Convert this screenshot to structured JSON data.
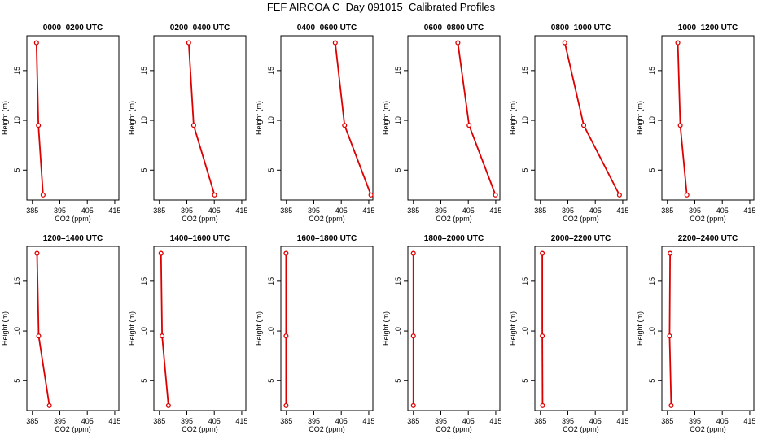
{
  "title": "FEF AIRCOA C  Day 091015  Calibrated Profiles",
  "colors": {
    "profile": "#dd0000",
    "axis": "#000000",
    "background": "#ffffff"
  },
  "chart_data": [
    {
      "type": "line",
      "title": "0000–0200 UTC",
      "xlabel": "CO2 (ppm)",
      "ylabel": "Height (m)",
      "xlim": [
        383,
        416.5
      ],
      "ylim": [
        2,
        18.5
      ],
      "xticks": [
        "385",
        "395",
        "405",
        "415"
      ],
      "yticks": [
        "5",
        "10",
        "15"
      ],
      "points": [
        {
          "x": 386.5,
          "y": 17.8
        },
        {
          "x": 387.2,
          "y": 9.5
        },
        {
          "x": 388.9,
          "y": 2.5
        }
      ]
    },
    {
      "type": "line",
      "title": "0200–0400 UTC",
      "xlabel": "CO2 (ppm)",
      "ylabel": "Height (m)",
      "xlim": [
        383,
        416.5
      ],
      "ylim": [
        2,
        18.5
      ],
      "xticks": [
        "385",
        "395",
        "405",
        "415"
      ],
      "yticks": [
        "5",
        "10",
        "15"
      ],
      "points": [
        {
          "x": 395.7,
          "y": 17.8
        },
        {
          "x": 397.5,
          "y": 9.5
        },
        {
          "x": 405.1,
          "y": 2.5
        }
      ]
    },
    {
      "type": "line",
      "title": "0400–0600 UTC",
      "xlabel": "CO2 (ppm)",
      "ylabel": "Height (m)",
      "xlim": [
        383,
        416.5
      ],
      "ylim": [
        2,
        18.5
      ],
      "xticks": [
        "385",
        "395",
        "405",
        "415"
      ],
      "yticks": [
        "5",
        "10",
        "15"
      ],
      "points": [
        {
          "x": 402.8,
          "y": 17.8
        },
        {
          "x": 406.2,
          "y": 9.5
        },
        {
          "x": 415.8,
          "y": 2.5
        }
      ]
    },
    {
      "type": "line",
      "title": "0600–0800 UTC",
      "xlabel": "CO2 (ppm)",
      "ylabel": "Height (m)",
      "xlim": [
        383,
        416.5
      ],
      "ylim": [
        2,
        18.5
      ],
      "xticks": [
        "385",
        "395",
        "405",
        "415"
      ],
      "yticks": [
        "5",
        "10",
        "15"
      ],
      "points": [
        {
          "x": 401.2,
          "y": 17.8
        },
        {
          "x": 405.3,
          "y": 9.5
        },
        {
          "x": 414.9,
          "y": 2.5
        }
      ]
    },
    {
      "type": "line",
      "title": "0800–1000 UTC",
      "xlabel": "CO2 (ppm)",
      "ylabel": "Height (m)",
      "xlim": [
        383,
        416.5
      ],
      "ylim": [
        2,
        18.5
      ],
      "xticks": [
        "385",
        "395",
        "405",
        "415"
      ],
      "yticks": [
        "5",
        "10",
        "15"
      ],
      "points": [
        {
          "x": 393.9,
          "y": 17.8
        },
        {
          "x": 400.8,
          "y": 9.5
        },
        {
          "x": 413.8,
          "y": 2.5
        }
      ]
    },
    {
      "type": "line",
      "title": "1000–1200 UTC",
      "xlabel": "CO2 (ppm)",
      "ylabel": "Height (m)",
      "xlim": [
        383,
        416.5
      ],
      "ylim": [
        2,
        18.5
      ],
      "xticks": [
        "385",
        "395",
        "405",
        "415"
      ],
      "yticks": [
        "5",
        "10",
        "15"
      ],
      "points": [
        {
          "x": 388.8,
          "y": 17.8
        },
        {
          "x": 389.7,
          "y": 9.5
        },
        {
          "x": 392.1,
          "y": 2.5
        }
      ]
    },
    {
      "type": "line",
      "title": "1200–1400 UTC",
      "xlabel": "CO2 (ppm)",
      "ylabel": "Height (m)",
      "xlim": [
        383,
        416.5
      ],
      "ylim": [
        2,
        18.5
      ],
      "xticks": [
        "385",
        "395",
        "405",
        "415"
      ],
      "yticks": [
        "5",
        "10",
        "15"
      ],
      "points": [
        {
          "x": 386.7,
          "y": 17.8
        },
        {
          "x": 387.3,
          "y": 9.5
        },
        {
          "x": 391.2,
          "y": 2.5
        }
      ]
    },
    {
      "type": "line",
      "title": "1400–1600 UTC",
      "xlabel": "CO2 (ppm)",
      "ylabel": "Height (m)",
      "xlim": [
        383,
        416.5
      ],
      "ylim": [
        2,
        18.5
      ],
      "xticks": [
        "385",
        "395",
        "405",
        "415"
      ],
      "yticks": [
        "5",
        "10",
        "15"
      ],
      "points": [
        {
          "x": 385.6,
          "y": 17.8
        },
        {
          "x": 386.0,
          "y": 9.5
        },
        {
          "x": 388.3,
          "y": 2.5
        }
      ]
    },
    {
      "type": "line",
      "title": "1600–1800 UTC",
      "xlabel": "CO2 (ppm)",
      "ylabel": "Height (m)",
      "xlim": [
        383,
        416.5
      ],
      "ylim": [
        2,
        18.5
      ],
      "xticks": [
        "385",
        "395",
        "405",
        "415"
      ],
      "yticks": [
        "5",
        "10",
        "15"
      ],
      "points": [
        {
          "x": 384.9,
          "y": 17.8
        },
        {
          "x": 384.9,
          "y": 9.5
        },
        {
          "x": 384.9,
          "y": 2.5
        }
      ]
    },
    {
      "type": "line",
      "title": "1800–2000 UTC",
      "xlabel": "CO2 (ppm)",
      "ylabel": "Height (m)",
      "xlim": [
        383,
        416.5
      ],
      "ylim": [
        2,
        18.5
      ],
      "xticks": [
        "385",
        "395",
        "405",
        "415"
      ],
      "yticks": [
        "5",
        "10",
        "15"
      ],
      "points": [
        {
          "x": 385.0,
          "y": 17.8
        },
        {
          "x": 385.0,
          "y": 9.5
        },
        {
          "x": 385.0,
          "y": 2.5
        }
      ]
    },
    {
      "type": "line",
      "title": "2000–2200 UTC",
      "xlabel": "CO2 (ppm)",
      "ylabel": "Height (m)",
      "xlim": [
        383,
        416.5
      ],
      "ylim": [
        2,
        18.5
      ],
      "xticks": [
        "385",
        "395",
        "405",
        "415"
      ],
      "yticks": [
        "5",
        "10",
        "15"
      ],
      "points": [
        {
          "x": 385.7,
          "y": 17.8
        },
        {
          "x": 385.7,
          "y": 9.5
        },
        {
          "x": 385.8,
          "y": 2.5
        }
      ]
    },
    {
      "type": "line",
      "title": "2200–2400 UTC",
      "xlabel": "CO2 (ppm)",
      "ylabel": "Height (m)",
      "xlim": [
        383,
        416.5
      ],
      "ylim": [
        2,
        18.5
      ],
      "xticks": [
        "385",
        "395",
        "405",
        "415"
      ],
      "yticks": [
        "5",
        "10",
        "15"
      ],
      "points": [
        {
          "x": 386.0,
          "y": 17.8
        },
        {
          "x": 385.8,
          "y": 9.5
        },
        {
          "x": 386.4,
          "y": 2.5
        }
      ]
    }
  ]
}
